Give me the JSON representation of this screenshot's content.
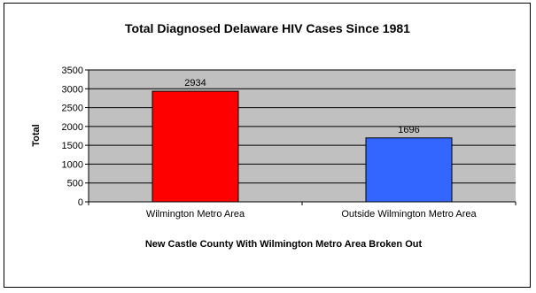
{
  "chart_data": {
    "type": "bar",
    "title": "Total Diagnosed Delaware HIV Cases Since 1981",
    "xlabel": "New Castle County With Wilmington Metro Area Broken Out",
    "ylabel": "Total",
    "categories": [
      "Wilmington Metro Area",
      "Outside Wilmington Metro Area"
    ],
    "values": [
      2934,
      1696
    ],
    "data_labels": [
      "2934",
      "1696"
    ],
    "ylim": [
      0,
      3500
    ],
    "yticks": [
      0,
      500,
      1000,
      1500,
      2000,
      2500,
      3000,
      3500
    ],
    "grid": true,
    "legend": "none",
    "colors": {
      "bars": [
        "#ff0000",
        "#3366ff"
      ],
      "plot_background": "#c0c0c0",
      "gridline": "#000000"
    }
  }
}
